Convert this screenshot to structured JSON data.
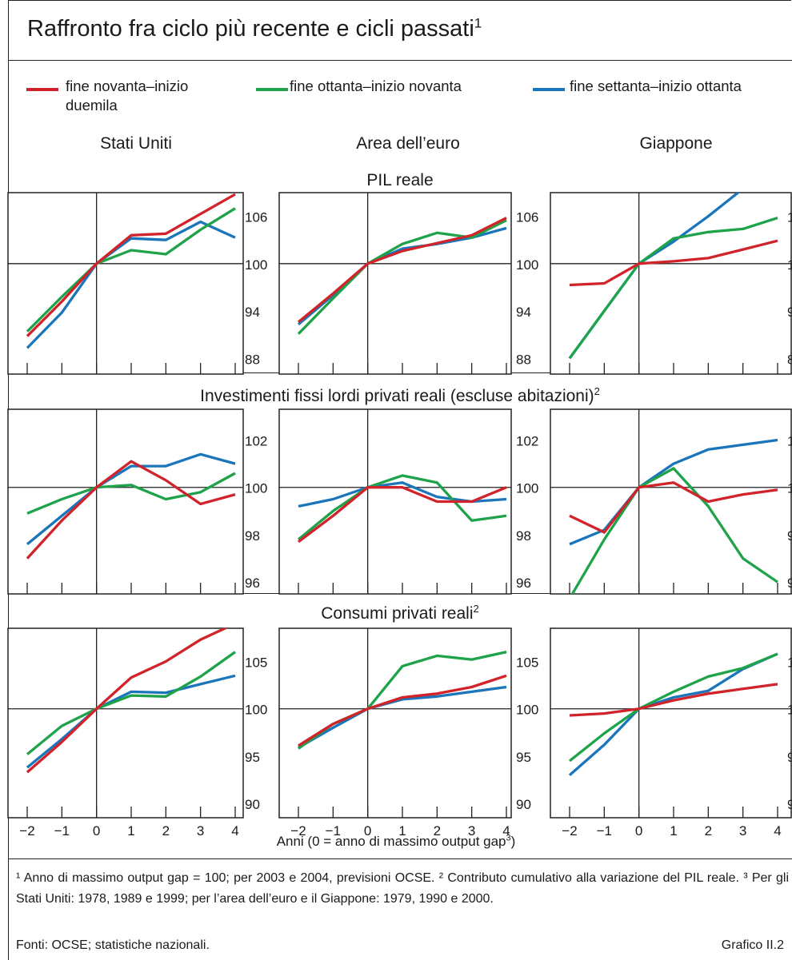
{
  "title": "Raffronto fra ciclo più recente e cicli passati",
  "title_sup": "1",
  "legend": [
    {
      "line1": "fine novanta–inizio",
      "line2": "duemila",
      "color": "#d1232a"
    },
    {
      "line1": "fine ottanta–inizio novanta",
      "line2": "",
      "color": "#1ea34a"
    },
    {
      "line1": "fine settanta–inizio ottanta",
      "line2": "",
      "color": "#1b75bb"
    }
  ],
  "columns": [
    "Stati Uniti",
    "Area dell’euro",
    "Giappone"
  ],
  "rows": [
    {
      "title": "PIL reale",
      "sup": ""
    },
    {
      "title": "Investimenti fissi lordi privati reali (escluse abitazioni)",
      "sup": "2"
    },
    {
      "title": "Consumi privati reali",
      "sup": "2"
    }
  ],
  "xaxis_title": "Anni (0 = anno di massimo output gap",
  "xaxis_title_sup": "3",
  "xaxis_title_close": ")",
  "notes": "¹ Anno di massimo output gap = 100; per 2003 e 2004, previsioni OCSE.   ² Contributo cumulativo alla variazione del PIL reale.   ³ Per gli Stati Uniti: 1978, 1989 e 1999; per l’area dell’euro e il Giappone: 1979, 1990 e 2000.",
  "sources": "Fonti: OCSE; statistiche nazionali.",
  "graph_ref": "Grafico II.2",
  "chart_data": [
    {
      "type": "line",
      "row": "PIL reale",
      "panel": "Stati Uniti",
      "x": [
        -2,
        -1,
        0,
        1,
        2,
        3,
        4
      ],
      "ylim": [
        86,
        109
      ],
      "yticks": [
        88,
        94,
        100,
        106
      ],
      "xticks": [
        -2,
        -1,
        0,
        1,
        2,
        3,
        4
      ],
      "show_xticklabels": false,
      "series": [
        {
          "name": "fine settanta–inizio ottanta",
          "color": "#1b75bb",
          "values": [
            89.3,
            93.8,
            100,
            103.2,
            103.0,
            105.3,
            103.3
          ]
        },
        {
          "name": "fine ottanta–inizio novanta",
          "color": "#1ea34a",
          "values": [
            91.4,
            95.8,
            100,
            101.7,
            101.2,
            104.3,
            107.0
          ]
        },
        {
          "name": "fine novanta–inizio duemila",
          "color": "#d1232a",
          "values": [
            90.8,
            95.2,
            100,
            103.6,
            103.8,
            106.3,
            108.8
          ]
        }
      ]
    },
    {
      "type": "line",
      "row": "PIL reale",
      "panel": "Area dell’euro",
      "x": [
        -2,
        -1,
        0,
        1,
        2,
        3,
        4
      ],
      "ylim": [
        86,
        109
      ],
      "yticks": [
        88,
        94,
        100,
        106
      ],
      "xticks": [
        -2,
        -1,
        0,
        1,
        2,
        3,
        4
      ],
      "show_xticklabels": false,
      "series": [
        {
          "name": "fine settanta–inizio ottanta",
          "color": "#1b75bb",
          "values": [
            92.3,
            96.0,
            100,
            101.9,
            102.5,
            103.3,
            104.5
          ]
        },
        {
          "name": "fine ottanta–inizio novanta",
          "color": "#1ea34a",
          "values": [
            91.1,
            95.6,
            100,
            102.5,
            103.9,
            103.3,
            105.5
          ]
        },
        {
          "name": "fine novanta–inizio duemila",
          "color": "#d1232a",
          "values": [
            92.6,
            96.2,
            100,
            101.6,
            102.6,
            103.6,
            105.8
          ]
        }
      ]
    },
    {
      "type": "line",
      "row": "PIL reale",
      "panel": "Giappone",
      "x": [
        -2,
        -1,
        0,
        1,
        2,
        3,
        4
      ],
      "ylim": [
        86,
        109
      ],
      "yticks": [
        88,
        94,
        100,
        106
      ],
      "xticks": [
        -2,
        -1,
        0,
        1,
        2,
        3,
        4
      ],
      "show_xticklabels": false,
      "series": [
        {
          "name": "fine settanta–inizio ottanta",
          "color": "#1b75bb",
          "values": [
            88.0,
            94.0,
            100,
            102.8,
            106.0,
            109.5,
            112.0
          ]
        },
        {
          "name": "fine ottanta–inizio novanta",
          "color": "#1ea34a",
          "values": [
            88.0,
            94.0,
            100,
            103.2,
            104.0,
            104.4,
            105.8
          ]
        },
        {
          "name": "fine novanta–inizio duemila",
          "color": "#d1232a",
          "values": [
            97.3,
            97.5,
            100,
            100.3,
            100.7,
            101.8,
            102.9
          ]
        }
      ]
    },
    {
      "type": "line",
      "row": "Investimenti fissi lordi privati reali (escluse abitazioni)",
      "panel": "Stati Uniti",
      "x": [
        -2,
        -1,
        0,
        1,
        2,
        3,
        4
      ],
      "ylim": [
        95.5,
        103.3
      ],
      "yticks": [
        96,
        98,
        100,
        102
      ],
      "xticks": [
        -2,
        -1,
        0,
        1,
        2,
        3,
        4
      ],
      "show_xticklabels": false,
      "series": [
        {
          "name": "fine settanta–inizio ottanta",
          "color": "#1b75bb",
          "values": [
            97.6,
            98.8,
            100,
            100.9,
            100.9,
            101.4,
            101.0
          ]
        },
        {
          "name": "fine ottanta–inizio novanta",
          "color": "#1ea34a",
          "values": [
            98.9,
            99.5,
            100,
            100.1,
            99.5,
            99.8,
            100.6
          ]
        },
        {
          "name": "fine novanta–inizio duemila",
          "color": "#d1232a",
          "values": [
            97.0,
            98.6,
            100,
            101.1,
            100.3,
            99.3,
            99.7
          ]
        }
      ]
    },
    {
      "type": "line",
      "row": "Investimenti fissi lordi privati reali (escluse abitazioni)",
      "panel": "Area dell’euro",
      "x": [
        -2,
        -1,
        0,
        1,
        2,
        3,
        4
      ],
      "ylim": [
        95.5,
        103.3
      ],
      "yticks": [
        96,
        98,
        100,
        102
      ],
      "xticks": [
        -2,
        -1,
        0,
        1,
        2,
        3,
        4
      ],
      "show_xticklabels": false,
      "series": [
        {
          "name": "fine settanta–inizio ottanta",
          "color": "#1b75bb",
          "values": [
            99.2,
            99.5,
            100,
            100.2,
            99.6,
            99.4,
            99.5
          ]
        },
        {
          "name": "fine ottanta–inizio novanta",
          "color": "#1ea34a",
          "values": [
            97.8,
            99.0,
            100,
            100.5,
            100.2,
            98.6,
            98.8
          ]
        },
        {
          "name": "fine novanta–inizio duemila",
          "color": "#d1232a",
          "values": [
            97.7,
            98.8,
            100,
            100.0,
            99.4,
            99.4,
            100.0
          ]
        }
      ]
    },
    {
      "type": "line",
      "row": "Investimenti fissi lordi privati reali (escluse abitazioni)",
      "panel": "Giappone",
      "x": [
        -2,
        -1,
        0,
        1,
        2,
        3,
        4
      ],
      "ylim": [
        95.5,
        103.3
      ],
      "yticks": [
        96,
        98,
        100,
        102
      ],
      "xticks": [
        -2,
        -1,
        0,
        1,
        2,
        3,
        4
      ],
      "show_xticklabels": false,
      "series": [
        {
          "name": "fine settanta–inizio ottanta",
          "color": "#1b75bb",
          "values": [
            97.6,
            98.2,
            100,
            101.0,
            101.6,
            101.8,
            102.0
          ]
        },
        {
          "name": "fine ottanta–inizio novanta",
          "color": "#1ea34a",
          "values": [
            95.3,
            97.8,
            100,
            100.8,
            99.2,
            97.0,
            96.0
          ]
        },
        {
          "name": "fine novanta–inizio duemila",
          "color": "#d1232a",
          "values": [
            98.8,
            98.1,
            100,
            100.2,
            99.4,
            99.7,
            99.9
          ]
        }
      ]
    },
    {
      "type": "line",
      "row": "Consumi privati reali",
      "panel": "Stati Uniti",
      "x": [
        -2,
        -1,
        0,
        1,
        2,
        3,
        4
      ],
      "ylim": [
        88.5,
        108.5
      ],
      "yticks": [
        90,
        95,
        100,
        105
      ],
      "xticks": [
        -2,
        -1,
        0,
        1,
        2,
        3,
        4
      ],
      "show_xticklabels": true,
      "series": [
        {
          "name": "fine settanta–inizio ottanta",
          "color": "#1b75bb",
          "values": [
            93.8,
            96.8,
            100,
            101.8,
            101.7,
            102.6,
            103.5
          ]
        },
        {
          "name": "fine ottanta–inizio novanta",
          "color": "#1ea34a",
          "values": [
            95.2,
            98.2,
            100,
            101.4,
            101.3,
            103.4,
            106.0
          ]
        },
        {
          "name": "fine novanta–inizio duemila",
          "color": "#d1232a",
          "values": [
            93.3,
            96.5,
            100,
            103.3,
            105.0,
            107.3,
            109.0
          ]
        }
      ]
    },
    {
      "type": "line",
      "row": "Consumi privati reali",
      "panel": "Area dell’euro",
      "x": [
        -2,
        -1,
        0,
        1,
        2,
        3,
        4
      ],
      "ylim": [
        88.5,
        108.5
      ],
      "yticks": [
        90,
        95,
        100,
        105
      ],
      "xticks": [
        -2,
        -1,
        0,
        1,
        2,
        3,
        4
      ],
      "show_xticklabels": true,
      "series": [
        {
          "name": "fine settanta–inizio ottanta",
          "color": "#1b75bb",
          "values": [
            95.9,
            98.0,
            100,
            101.0,
            101.3,
            101.8,
            102.3
          ]
        },
        {
          "name": "fine ottanta–inizio novanta",
          "color": "#1ea34a",
          "values": [
            95.8,
            98.4,
            100,
            104.5,
            105.6,
            105.2,
            106.0
          ]
        },
        {
          "name": "fine novanta–inizio duemila",
          "color": "#d1232a",
          "values": [
            96.1,
            98.4,
            100,
            101.2,
            101.6,
            102.3,
            103.5
          ]
        }
      ]
    },
    {
      "type": "line",
      "row": "Consumi privati reali",
      "panel": "Giappone",
      "x": [
        -2,
        -1,
        0,
        1,
        2,
        3,
        4
      ],
      "ylim": [
        88.5,
        108.5
      ],
      "yticks": [
        90,
        95,
        100,
        105
      ],
      "xticks": [
        -2,
        -1,
        0,
        1,
        2,
        3,
        4
      ],
      "show_xticklabels": true,
      "series": [
        {
          "name": "fine settanta–inizio ottanta",
          "color": "#1b75bb",
          "values": [
            93.0,
            96.2,
            100,
            101.2,
            101.9,
            104.2,
            105.8
          ]
        },
        {
          "name": "fine ottanta–inizio novanta",
          "color": "#1ea34a",
          "values": [
            94.5,
            97.4,
            100,
            101.8,
            103.4,
            104.3,
            105.8
          ]
        },
        {
          "name": "fine novanta–inizio duemila",
          "color": "#d1232a",
          "values": [
            99.3,
            99.5,
            100,
            100.9,
            101.6,
            102.1,
            102.6
          ]
        }
      ]
    }
  ]
}
